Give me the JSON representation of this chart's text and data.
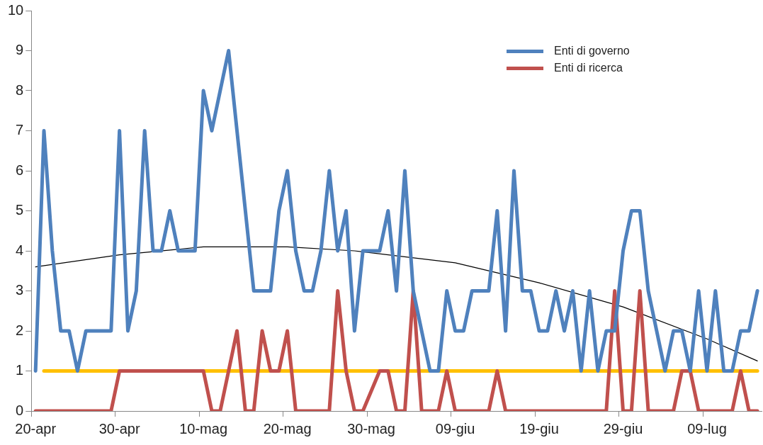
{
  "chart_data": {
    "type": "line",
    "categories": [
      "20-apr",
      null,
      null,
      null,
      null,
      null,
      null,
      null,
      null,
      null,
      "30-apr",
      null,
      null,
      null,
      null,
      null,
      null,
      null,
      null,
      null,
      "10-mag",
      null,
      null,
      null,
      null,
      null,
      null,
      null,
      null,
      null,
      "20-mag",
      null,
      null,
      null,
      null,
      null,
      null,
      null,
      null,
      null,
      "30-mag",
      null,
      null,
      null,
      null,
      null,
      null,
      null,
      null,
      null,
      "09-giu",
      null,
      null,
      null,
      null,
      null,
      null,
      null,
      null,
      null,
      "19-giu",
      null,
      null,
      null,
      null,
      null,
      null,
      null,
      null,
      null,
      "29-giu",
      null,
      null,
      null,
      null,
      null,
      null,
      null,
      null,
      null,
      "09-lug",
      null,
      null,
      null,
      null,
      null,
      null
    ],
    "series": [
      {
        "name": "Enti di governo",
        "color": "#4f81bd",
        "values": [
          1,
          7,
          4,
          2,
          2,
          1,
          2,
          2,
          2,
          2,
          7,
          2,
          3,
          7,
          4,
          4,
          5,
          4,
          4,
          4,
          8,
          7,
          8,
          9,
          7,
          5,
          3,
          3,
          3,
          5,
          6,
          4,
          3,
          3,
          4,
          6,
          4,
          5,
          2,
          4,
          4,
          4,
          5,
          3,
          6,
          3,
          2,
          1,
          1,
          3,
          2,
          2,
          3,
          3,
          3,
          5,
          2,
          6,
          3,
          3,
          2,
          2,
          3,
          2,
          3,
          1,
          3,
          1,
          2,
          2,
          4,
          5,
          5,
          3,
          2,
          1,
          2,
          2,
          1,
          3,
          1,
          3,
          1,
          1,
          2,
          2,
          3
        ]
      },
      {
        "name": "Enti di ricerca",
        "color": "#c0504d",
        "values": [
          0,
          0,
          0,
          0,
          0,
          0,
          0,
          0,
          0,
          0,
          1,
          1,
          1,
          1,
          1,
          1,
          1,
          1,
          1,
          1,
          1,
          0,
          0,
          1,
          2,
          0,
          0,
          2,
          1,
          1,
          2,
          0,
          0,
          0,
          0,
          0,
          3,
          1,
          0,
          0,
          0.5,
          1,
          1,
          0,
          0,
          3,
          0,
          0,
          0,
          1,
          0,
          0,
          0,
          0,
          0,
          1,
          0,
          0,
          0,
          0,
          0,
          0,
          0,
          0,
          0,
          0,
          0,
          0,
          0,
          3,
          0,
          0,
          3,
          0,
          0,
          0,
          0,
          1,
          1,
          0,
          0,
          0,
          0,
          0,
          1,
          0,
          0
        ]
      },
      {
        "color": "#ffc000",
        "values": [
          null,
          1,
          1,
          1,
          1,
          1,
          1,
          1,
          1,
          1,
          1,
          1,
          1,
          1,
          1,
          1,
          1,
          1,
          1,
          1,
          1,
          1,
          1,
          1,
          1,
          1,
          1,
          1,
          1,
          1,
          1,
          1,
          1,
          1,
          1,
          1,
          1,
          1,
          1,
          1,
          1,
          1,
          1,
          1,
          1,
          1,
          1,
          1,
          1,
          1,
          1,
          1,
          1,
          1,
          1,
          1,
          1,
          1,
          1,
          1,
          1,
          1,
          1,
          1,
          1,
          1,
          1,
          1,
          1,
          1,
          1,
          1,
          1,
          1,
          1,
          1,
          1,
          1,
          1,
          1,
          1,
          1,
          1,
          1,
          1,
          1,
          1
        ]
      },
      {
        "color": "#000000",
        "values": [
          3.6,
          null,
          null,
          null,
          null,
          null,
          null,
          null,
          null,
          null,
          3.9,
          null,
          null,
          null,
          null,
          null,
          null,
          null,
          null,
          null,
          4.1,
          null,
          null,
          null,
          null,
          null,
          null,
          null,
          null,
          null,
          4.1,
          null,
          null,
          null,
          null,
          null,
          null,
          null,
          4.0,
          null,
          null,
          null,
          null,
          null,
          null,
          null,
          null,
          null,
          null,
          null,
          3.7,
          null,
          null,
          null,
          null,
          null,
          null,
          null,
          null,
          null,
          3.2,
          null,
          null,
          null,
          null,
          null,
          null,
          null,
          null,
          null,
          2.6,
          null,
          null,
          null,
          null,
          null,
          null,
          null,
          null,
          null,
          1.8,
          null,
          null,
          null,
          null,
          null,
          1.25
        ]
      }
    ],
    "ylim": [
      0,
      10
    ],
    "yticks": [
      0,
      1,
      2,
      3,
      4,
      5,
      6,
      7,
      8,
      9,
      10
    ],
    "grid": false,
    "legend": "top right",
    "marker": "none"
  }
}
